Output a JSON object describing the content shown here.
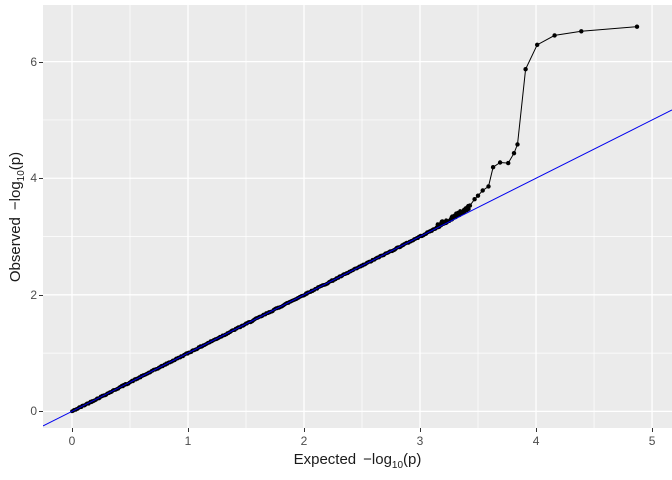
{
  "chart_data": {
    "type": "scatter",
    "title": "",
    "xlabel": "Expected −log10(p)",
    "ylabel": "Observed −log10(p)",
    "xlabel_parts": {
      "word": "Expected",
      "func": "−log",
      "sub": "10",
      "arg": "(p)"
    },
    "ylabel_parts": {
      "word": "Observed",
      "func": "−log",
      "sub": "10",
      "arg": "(p)"
    },
    "x_ticks": [
      "0",
      "1",
      "2",
      "3",
      "4",
      "5"
    ],
    "x_tick_values": [
      0,
      1,
      2,
      3,
      4,
      5
    ],
    "y_ticks": [
      "0",
      "2",
      "4",
      "6"
    ],
    "y_tick_values": [
      0,
      2,
      4,
      6
    ],
    "x_minor_gridlines": [
      0.5,
      1.5,
      2.5,
      3.5,
      4.5
    ],
    "y_minor_gridlines": [
      1,
      3,
      5
    ],
    "xlim": [
      -0.25,
      5.172
    ],
    "ylim": [
      -0.285,
      6.972
    ],
    "grid": "on",
    "legend": "none",
    "panel_bg": "#EBEBEB",
    "grid_color": "#FFFFFF",
    "tick_color": "#333333",
    "tick_label_color": "#4D4D4D",
    "axis_title_color": "#1A1A1A",
    "reference_line": {
      "type": "identity",
      "slope": 1,
      "intercept": 0,
      "color": "#0000EE"
    },
    "points_color": "#000000",
    "null_band": {
      "description": "dense overlapping points hugging the identity line from the origin",
      "x_start": 0,
      "x_end": 3.42,
      "n_points": 430,
      "y_jitter": 0.011,
      "upward_curve_coeff": 0.3,
      "upward_curve_start": 3.0,
      "extra_cluster": {
        "x_start": 3.15,
        "x_end": 3.42,
        "n_points": 45,
        "y_offset_max": 0.06
      },
      "point_radius_px": 1.9
    },
    "tail_points": [
      [
        3.43,
        3.53
      ],
      [
        3.47,
        3.64
      ],
      [
        3.5,
        3.7
      ],
      [
        3.54,
        3.79
      ],
      [
        3.59,
        3.86
      ],
      [
        3.63,
        4.19
      ],
      [
        3.69,
        4.27
      ],
      [
        3.76,
        4.26
      ],
      [
        3.81,
        4.43
      ],
      [
        3.84,
        4.58
      ],
      [
        3.91,
        5.87
      ],
      [
        4.01,
        6.29
      ],
      [
        4.16,
        6.45
      ],
      [
        4.39,
        6.52
      ],
      [
        4.87,
        6.6
      ]
    ],
    "tail_point_radius_px": 2.2,
    "connecting_line": true
  }
}
